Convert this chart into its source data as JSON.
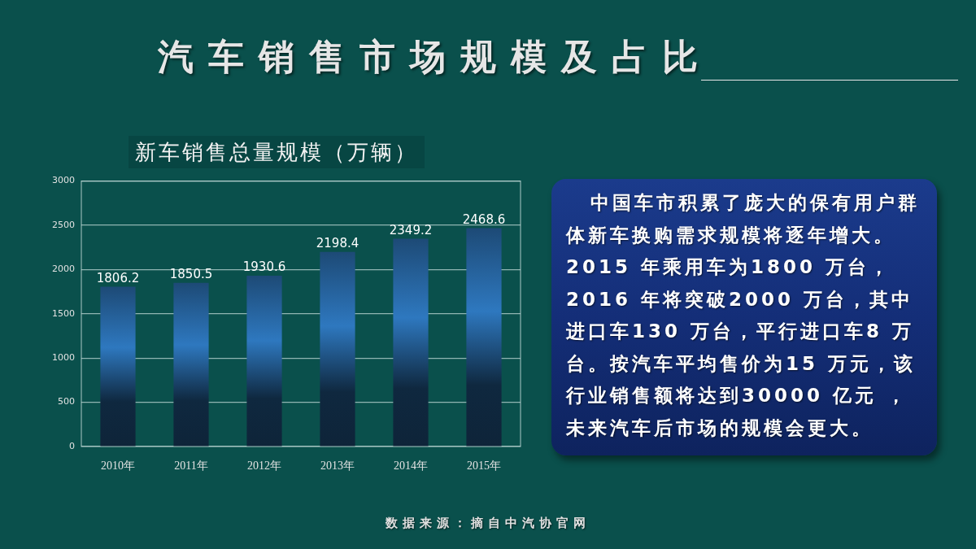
{
  "chart_data": {
    "type": "bar",
    "title": "汽车销售市场规模及占比",
    "subtitle": "新车销售总量规模（万辆）",
    "categories": [
      "2010年",
      "2011年",
      "2012年",
      "2013年",
      "2014年",
      "2015年"
    ],
    "values": [
      1806.2,
      1850.5,
      1930.6,
      2198.4,
      2349.2,
      2468.6
    ],
    "color": "#2e78bf",
    "ylim": [
      0,
      3000
    ],
    "yticks": [
      0,
      500,
      1000,
      1500,
      2000,
      2500,
      3000
    ],
    "grid": "y",
    "data_labels": true,
    "annotations": [
      "中国车市积累了庞大的保有用户群体新车换购需求规模将逐年增大。2015 年乘用车为1800 万台，2016 年将突破2000 万台，其中进口车130 万台，平行进口车8 万台。按汽车平均售价为15 万元，该行业销售额将达到30000 亿元 ，未来汽车后市场的规模会更大。",
      "数据来源：摘自中汽协官网"
    ]
  }
}
